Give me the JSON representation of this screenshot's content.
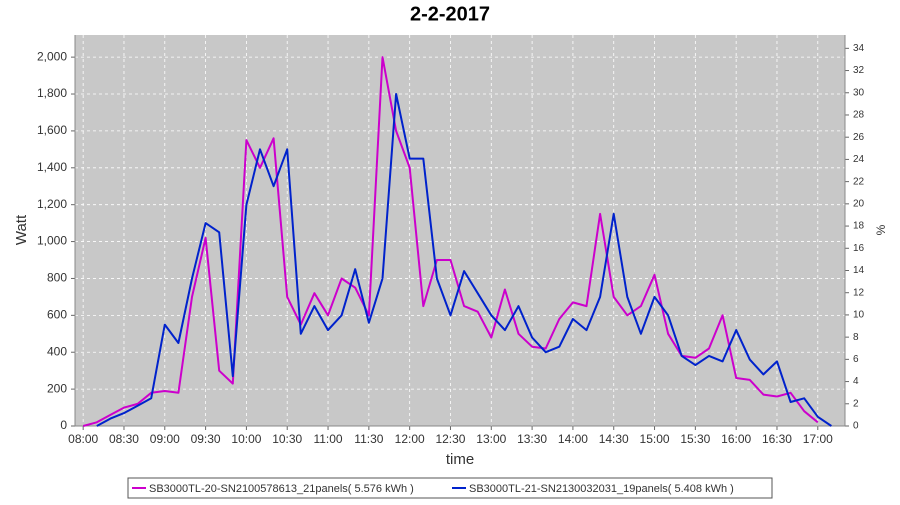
{
  "chart_data": {
    "type": "line",
    "title": "2-2-2017",
    "x_label": "time",
    "y_label": "Watt",
    "y2_label": "%",
    "x": [
      480,
      490,
      500,
      510,
      520,
      530,
      540,
      550,
      560,
      570,
      580,
      590,
      600,
      610,
      620,
      630,
      640,
      650,
      660,
      670,
      680,
      690,
      700,
      710,
      720,
      730,
      740,
      750,
      760,
      770,
      780,
      790,
      800,
      810,
      820,
      830,
      840,
      850,
      860,
      870,
      880,
      890,
      900,
      910,
      920,
      930,
      940,
      950,
      960,
      970,
      980,
      990,
      1000,
      1010,
      1020,
      1030
    ],
    "xlim": [
      474,
      1040
    ],
    "xticks": [
      {
        "value": 480,
        "label": "08:00"
      },
      {
        "value": 510,
        "label": "08:30"
      },
      {
        "value": 540,
        "label": "09:00"
      },
      {
        "value": 570,
        "label": "09:30"
      },
      {
        "value": 600,
        "label": "10:00"
      },
      {
        "value": 630,
        "label": "10:30"
      },
      {
        "value": 660,
        "label": "11:00"
      },
      {
        "value": 690,
        "label": "11:30"
      },
      {
        "value": 720,
        "label": "12:00"
      },
      {
        "value": 750,
        "label": "12:30"
      },
      {
        "value": 780,
        "label": "13:00"
      },
      {
        "value": 810,
        "label": "13:30"
      },
      {
        "value": 840,
        "label": "14:00"
      },
      {
        "value": 870,
        "label": "14:30"
      },
      {
        "value": 900,
        "label": "15:00"
      },
      {
        "value": 930,
        "label": "15:30"
      },
      {
        "value": 960,
        "label": "16:00"
      },
      {
        "value": 990,
        "label": "16:30"
      },
      {
        "value": 1020,
        "label": "17:00"
      }
    ],
    "ylim": [
      0,
      2120
    ],
    "yticks": [
      0,
      200,
      400,
      600,
      800,
      {
        "value": 1000,
        "label": "1,000"
      },
      {
        "value": 1200,
        "label": "1,200"
      },
      {
        "value": 1400,
        "label": "1,400"
      },
      {
        "value": 1600,
        "label": "1,600"
      },
      {
        "value": 1800,
        "label": "1,800"
      },
      {
        "value": 2000,
        "label": "2,000"
      }
    ],
    "y2lim": [
      0,
      35.2
    ],
    "y2ticks": [
      0,
      2,
      4,
      6,
      8,
      10,
      12,
      14,
      16,
      18,
      20,
      22,
      24,
      26,
      28,
      30,
      32,
      34
    ],
    "grid": true,
    "series": [
      {
        "name": "SB3000TL-20-SN2100578613_21panels( 5.576 kWh )",
        "color": "#cc00cc",
        "values": [
          0,
          20,
          60,
          100,
          120,
          180,
          190,
          180,
          700,
          1020,
          300,
          230,
          1550,
          1400,
          1560,
          700,
          550,
          720,
          600,
          800,
          750,
          600,
          2000,
          1600,
          1400,
          650,
          900,
          900,
          650,
          620,
          480,
          740,
          500,
          430,
          420,
          580,
          670,
          650,
          1150,
          700,
          600,
          650,
          820,
          500,
          380,
          370,
          420,
          600,
          260,
          250,
          170,
          160,
          180,
          80,
          20,
          null
        ]
      },
      {
        "name": "SB3000TL-21-SN2130032031_19panels( 5.408 kWh )",
        "color": "#0022cc",
        "values": [
          null,
          0,
          40,
          70,
          110,
          150,
          550,
          450,
          800,
          1100,
          1050,
          270,
          1200,
          1500,
          1300,
          1500,
          500,
          650,
          520,
          600,
          850,
          560,
          800,
          1800,
          1450,
          1450,
          800,
          600,
          840,
          720,
          600,
          520,
          650,
          480,
          400,
          430,
          580,
          520,
          700,
          1150,
          700,
          500,
          700,
          600,
          380,
          330,
          380,
          350,
          520,
          360,
          280,
          350,
          130,
          150,
          50,
          0
        ]
      }
    ]
  }
}
